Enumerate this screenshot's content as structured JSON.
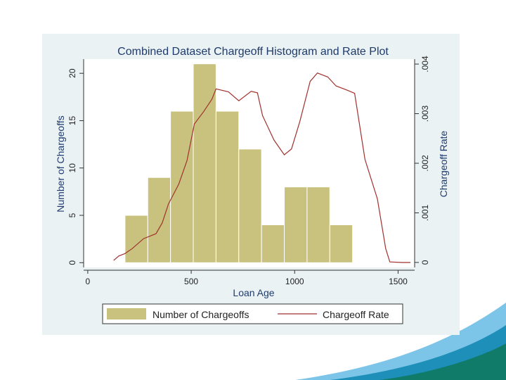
{
  "chart_data": {
    "type": "bar+line",
    "title": "Combined Dataset Chargeoff Histogram and Rate Plot",
    "xlabel": "Loan Age",
    "ylabel_left": "Number of Chargeoffs",
    "ylabel_right": "Chargeoff Rate",
    "xlim": [
      -20,
      1580
    ],
    "ylim_left": [
      -0.5,
      21.5
    ],
    "ylim_right": [
      -0.0001,
      0.0041
    ],
    "x_ticks": [
      0,
      500,
      1000,
      1500
    ],
    "y_left_ticks": [
      0,
      5,
      10,
      15,
      20
    ],
    "y_right_ticks": [
      0,
      0.001,
      0.002,
      0.003,
      0.004
    ],
    "y_right_tick_labels": [
      "0",
      ".001",
      ".002",
      ".003",
      ".004"
    ],
    "legend_position": "bottom",
    "grid": false,
    "colors": {
      "bar_fill": "#c9c27e",
      "bar_edge": "#ffffff",
      "line": "#a0322f",
      "panel_bg": "#eaf2f3",
      "plot_bg": "#ffffff",
      "axis": "#333333"
    },
    "series": [
      {
        "name": "Number of Chargeoffs",
        "kind": "histogram",
        "bin_width": 110,
        "bins": [
          {
            "start": 180,
            "count": 5
          },
          {
            "start": 290,
            "count": 9
          },
          {
            "start": 400,
            "count": 16
          },
          {
            "start": 510,
            "count": 21
          },
          {
            "start": 620,
            "count": 16
          },
          {
            "start": 730,
            "count": 12
          },
          {
            "start": 840,
            "count": 4
          },
          {
            "start": 950,
            "count": 8
          },
          {
            "start": 1060,
            "count": 8
          },
          {
            "start": 1170,
            "count": 4
          }
        ]
      },
      {
        "name": "Chargeoff Rate",
        "kind": "line",
        "points": [
          [
            125,
            4e-05
          ],
          [
            150,
            0.00013
          ],
          [
            180,
            0.00018
          ],
          [
            215,
            0.00028
          ],
          [
            270,
            0.00048
          ],
          [
            330,
            0.00058
          ],
          [
            360,
            0.0008
          ],
          [
            390,
            0.00118
          ],
          [
            440,
            0.00158
          ],
          [
            480,
            0.00206
          ],
          [
            515,
            0.00279
          ],
          [
            560,
            0.00304
          ],
          [
            600,
            0.00329
          ],
          [
            620,
            0.0035
          ],
          [
            680,
            0.00344
          ],
          [
            730,
            0.00326
          ],
          [
            790,
            0.00345
          ],
          [
            820,
            0.00342
          ],
          [
            845,
            0.00296
          ],
          [
            900,
            0.00247
          ],
          [
            950,
            0.00217
          ],
          [
            985,
            0.00229
          ],
          [
            1025,
            0.00284
          ],
          [
            1075,
            0.00365
          ],
          [
            1110,
            0.00382
          ],
          [
            1160,
            0.00374
          ],
          [
            1200,
            0.00356
          ],
          [
            1250,
            0.00348
          ],
          [
            1290,
            0.00341
          ],
          [
            1340,
            0.00208
          ],
          [
            1400,
            0.00128
          ],
          [
            1440,
            0.00028
          ],
          [
            1460,
            1e-05
          ],
          [
            1520,
            0.0
          ],
          [
            1560,
            0.0
          ]
        ]
      }
    ]
  }
}
